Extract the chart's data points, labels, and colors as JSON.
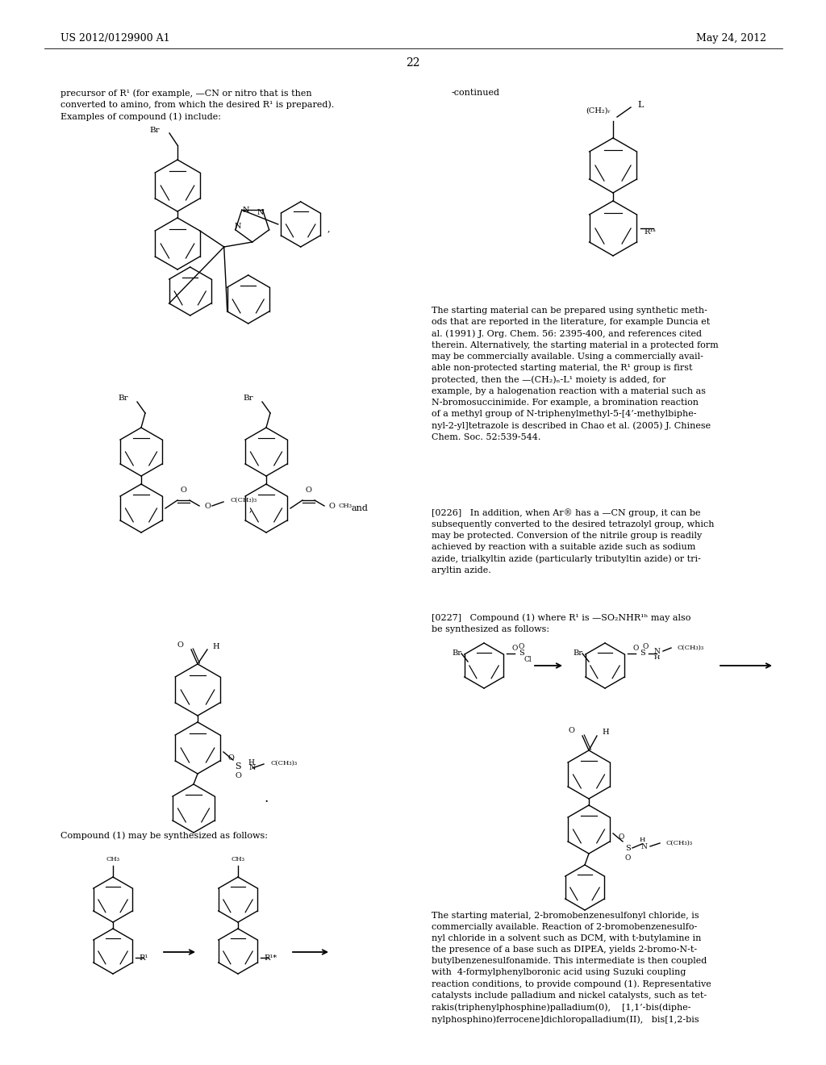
{
  "background_color": "#ffffff",
  "header_left": "US 2012/0129900 A1",
  "header_right": "May 24, 2012",
  "page_number": "22",
  "text_fontsize": 8.0,
  "header_fontsize": 9.0,
  "paragraph1": "precursor of R¹ (for example, —CN or nitro that is then\nconverted to amino, from which the desired R¹ is prepared).\nExamples of compound (1) include:",
  "continued_text": "-continued",
  "paragraph_right_1": "The starting material can be prepared using synthetic meth-\nods that are reported in the literature, for example Duncia et\nal. (1991) J. Org. Chem. 56: 2395-400, and references cited\ntherein. Alternatively, the starting material in a protected form\nmay be commercially available. Using a commercially avail-\nable non-protected starting material, the R¹ group is first\nprotected, then the —(CH₂)ₙ-L¹ moiety is added, for\nexample, by a halogenation reaction with a material such as\nN-bromosuccinimide. For example, a bromination reaction\nof a methyl group of N-triphenylmethyl-5-[4’-methylbiphe-\nnyl-2-yl]tetrazole is described in Chao et al. (2005) J. Chinese\nChem. Soc. 52:539-544.",
  "paragraph_right_2": "[0226]   In addition, when Ar® has a —CN group, it can be\nsubsequently converted to the desired tetrazolyl group, which\nmay be protected. Conversion of the nitrile group is readily\nachieved by reaction with a suitable azide such as sodium\nazide, trialkyltin azide (particularly tributyltin azide) or tri-\naryltin azide.",
  "paragraph_right_3": "[0227]   Compound (1) where R¹ is —SO₂NHR¹ʰ may also\nbe synthesized as follows:",
  "paragraph_bottom_left": "Compound (1) may be synthesized as follows:",
  "paragraph_bottom_right": "The starting material, 2-bromobenzenesulfonyl chloride, is\ncommercially available. Reaction of 2-bromobenzenesulfo-\nnyl chloride in a solvent such as DCM, with t-butylamine in\nthe presence of a base such as DIPEA, yields 2-bromo-N-t-\nbutylbenzenesulfonamide. This intermediate is then coupled\nwith  4-formylphenylboronic acid using Suzuki coupling\nreaction conditions, to provide compound (1). Representative\ncatalysts include palladium and nickel catalysts, such as tet-\nrakis(triphenylphosphine)palladium(0),    [1,1’-bis(diphe-\nnylphosphino)ferrocene]dichloropalladium(II),   bis[1,2-bis"
}
